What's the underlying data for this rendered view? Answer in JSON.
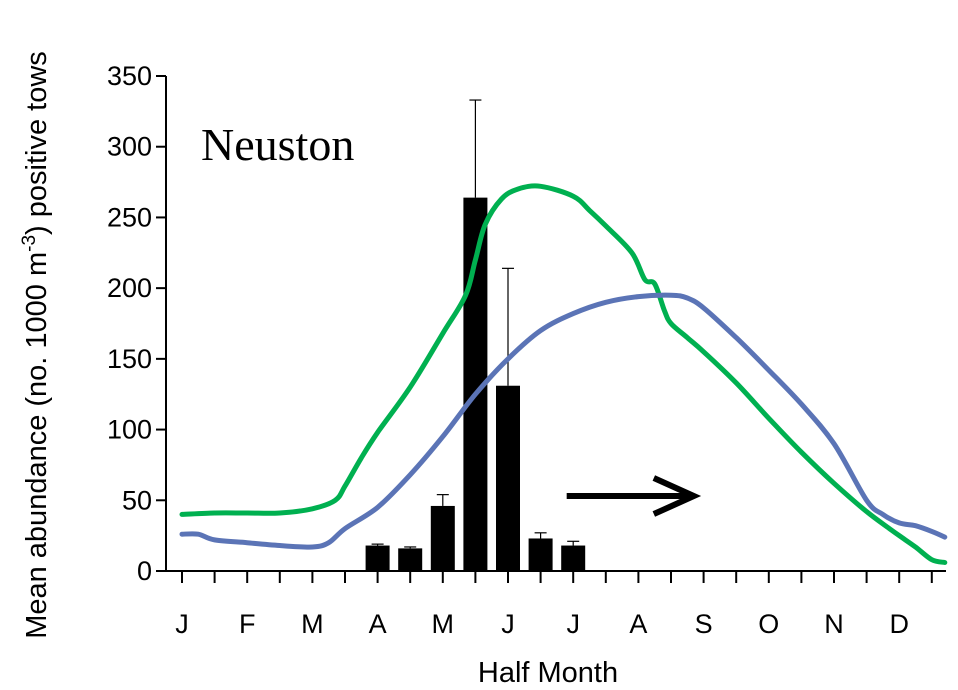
{
  "chart_data": {
    "type": "bar+line",
    "xlabel": "Half Month",
    "ylabel": "Mean abundance (no. 1000 m-3) positive tows",
    "ylabel_parts": {
      "before": "Mean abundance (no. 1000 m",
      "superscript": "-3",
      "after": ") positive tows"
    },
    "ylim": [
      0,
      350
    ],
    "yticks": [
      0,
      50,
      100,
      150,
      200,
      250,
      300,
      350
    ],
    "xlim": [
      0,
      24
    ],
    "month_labels": [
      "J",
      "F",
      "M",
      "A",
      "M",
      "J",
      "J",
      "A",
      "S",
      "O",
      "N",
      "D"
    ],
    "annotation": "Neuston",
    "bars": {
      "x": [
        6,
        7,
        8,
        9,
        10,
        11,
        12
      ],
      "values": [
        18,
        16,
        46,
        264,
        131,
        23,
        18
      ],
      "error_upper": [
        19,
        17,
        54,
        333,
        214,
        27,
        21
      ],
      "color": "#000000"
    },
    "series": [
      {
        "color": "#00b050",
        "x": [
          0,
          1,
          2,
          3,
          4,
          4.7,
          5,
          5.5,
          6,
          7,
          8,
          8.7,
          9,
          9.3,
          9.8,
          10.3,
          11,
          12,
          12.5,
          13,
          13.8,
          14.2,
          14.5,
          14.8,
          15,
          15.5,
          16,
          17,
          18,
          19,
          20,
          21,
          21.7,
          22,
          22.5,
          23,
          23.4
        ],
        "y": [
          40,
          41,
          41,
          41,
          44,
          50,
          60,
          80,
          98,
          130,
          168,
          195,
          220,
          245,
          263,
          270,
          272,
          265,
          255,
          244,
          225,
          206,
          203,
          184,
          175,
          165,
          155,
          133,
          108,
          84,
          62,
          42,
          30,
          25,
          17,
          8,
          6
        ]
      },
      {
        "color": "#5b74b6",
        "x": [
          0,
          0.5,
          1,
          2,
          3,
          4,
          4.5,
          5,
          6,
          7,
          8,
          9,
          10,
          11,
          12,
          13,
          14,
          15,
          15.5,
          16,
          17,
          18,
          19,
          20,
          21,
          21.5,
          22,
          22.5,
          23,
          23.4
        ],
        "y": [
          26,
          26,
          22,
          20,
          18,
          17,
          20,
          30,
          45,
          68,
          95,
          125,
          150,
          170,
          182,
          190,
          194,
          195,
          193,
          186,
          165,
          142,
          118,
          90,
          50,
          40,
          34,
          32,
          28,
          24
        ]
      }
    ],
    "arrow": {
      "x_start": 11.8,
      "x_end": 15.7,
      "y": 53
    },
    "grid": false,
    "legend": "none"
  }
}
